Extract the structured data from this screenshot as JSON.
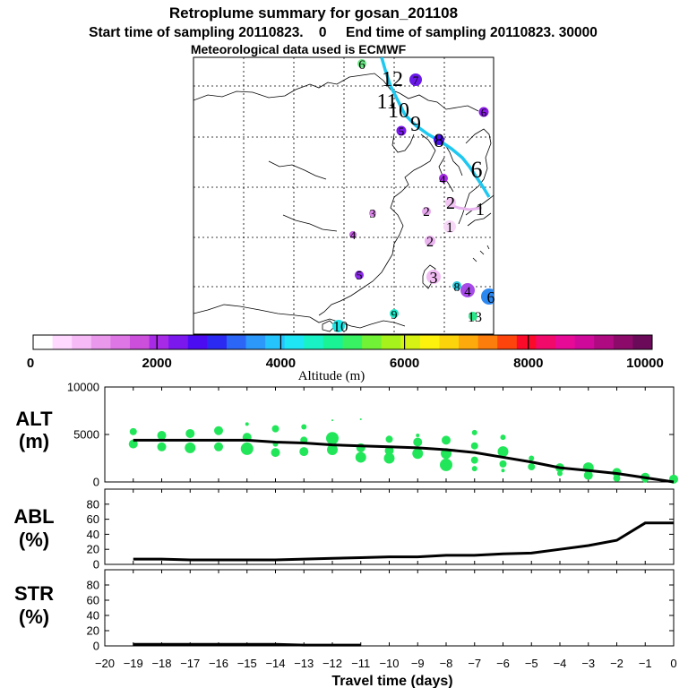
{
  "title": "Retroplume summary for gosan_201108",
  "subtitle_line1": "Start time of sampling 20110823.    0     End time of sampling 20110823. 30000",
  "subtitle_line2": "Meteorological data used is ECMWF",
  "chart_data": [
    {
      "type": "scatter",
      "name": "map",
      "description_labels": "Retroplume cluster centres labelled by travel day; colour = altitude",
      "clusters": [
        {
          "label": "6",
          "alt": 5500
        },
        {
          "label": "12",
          "alt": 200
        },
        {
          "label": "7",
          "alt": 2200
        },
        {
          "label": "11",
          "alt": 0
        },
        {
          "label": "10",
          "alt": 0
        },
        {
          "label": "9",
          "alt": 0
        },
        {
          "label": "6",
          "alt": 2000
        },
        {
          "label": "8",
          "alt": 2200
        },
        {
          "label": "5",
          "alt": 1500
        },
        {
          "label": "6",
          "alt": 0
        },
        {
          "label": "4",
          "alt": 1500
        },
        {
          "label": "2",
          "alt": 600
        },
        {
          "label": "3",
          "alt": 1500
        },
        {
          "label": "2",
          "alt": 1500
        },
        {
          "label": "1",
          "alt": 300
        },
        {
          "label": "1",
          "alt": 100
        },
        {
          "label": "4",
          "alt": 1700
        },
        {
          "label": "2",
          "alt": 1000
        },
        {
          "label": "5",
          "alt": 2000
        },
        {
          "label": "3",
          "alt": 800
        },
        {
          "label": "8",
          "alt": 4500
        },
        {
          "label": "4",
          "alt": 1700
        },
        {
          "label": "6",
          "alt": 3000
        },
        {
          "label": "9",
          "alt": 4500
        },
        {
          "label": "10",
          "alt": 3800
        },
        {
          "label": "13",
          "alt": 4700
        }
      ]
    },
    {
      "type": "colorbar",
      "name": "altitude-colorbar",
      "xlabel": "Altitude (m)",
      "range": [
        0,
        10000
      ],
      "tick_labels": [
        "0",
        "2000",
        "4000",
        "6000",
        "8000",
        "10000"
      ],
      "ticks": [
        0,
        2000,
        4000,
        6000,
        8000,
        10000
      ],
      "colors": [
        "#ffffff",
        "#ffd9ff",
        "#f6bbf6",
        "#ea98ec",
        "#df76e5",
        "#cc4fdc",
        "#a62ae6",
        "#7a18ee",
        "#4b0cf2",
        "#2a2af2",
        "#2b66f6",
        "#2b98fa",
        "#26c4fc",
        "#1ee6f5",
        "#18f2c4",
        "#1af296",
        "#39f264",
        "#72f236",
        "#a6f21d",
        "#d6f214",
        "#fcf20e",
        "#fcd40c",
        "#fcaa0c",
        "#fc7c0c",
        "#fc440c",
        "#fc0a2a",
        "#f20a6a",
        "#e60a96",
        "#cf0a9a",
        "#b00a82",
        "#8c0a6a",
        "#6a0a58"
      ]
    },
    {
      "type": "line",
      "name": "alt-panel",
      "ylabel": "ALT\n(m)",
      "ylabel_line1": "ALT",
      "ylabel_line2": "(m)",
      "ylim": [
        0,
        10000
      ],
      "ytick_labels": [
        "10000",
        "5000",
        "0"
      ],
      "yticks": [
        10000,
        5000,
        0
      ],
      "x": [
        -19,
        -18,
        -17,
        -16,
        -15,
        -14,
        -13,
        -12,
        -11,
        -10,
        -9,
        -8,
        -7,
        -6,
        -5,
        -4,
        -3,
        -2,
        -1,
        0
      ],
      "values": [
        4400,
        4400,
        4400,
        4400,
        4400,
        4200,
        4100,
        3900,
        3800,
        3700,
        3600,
        3400,
        3100,
        2600,
        2100,
        1500,
        1200,
        900,
        450,
        0
      ],
      "scatter": [
        {
          "x": -19,
          "y": 5300,
          "r": 4
        },
        {
          "x": -19,
          "y": 4000,
          "r": 5
        },
        {
          "x": -18,
          "y": 4900,
          "r": 5
        },
        {
          "x": -18,
          "y": 3700,
          "r": 5
        },
        {
          "x": -17,
          "y": 5100,
          "r": 5
        },
        {
          "x": -17,
          "y": 3600,
          "r": 6
        },
        {
          "x": -16,
          "y": 5400,
          "r": 5
        },
        {
          "x": -16,
          "y": 3700,
          "r": 5
        },
        {
          "x": -15,
          "y": 6100,
          "r": 2
        },
        {
          "x": -15,
          "y": 4700,
          "r": 5
        },
        {
          "x": -15,
          "y": 3500,
          "r": 7
        },
        {
          "x": -14,
          "y": 5600,
          "r": 4
        },
        {
          "x": -14,
          "y": 4000,
          "r": 3
        },
        {
          "x": -14,
          "y": 3100,
          "r": 5
        },
        {
          "x": -13,
          "y": 5800,
          "r": 3
        },
        {
          "x": -13,
          "y": 4400,
          "r": 4
        },
        {
          "x": -13,
          "y": 3200,
          "r": 5
        },
        {
          "x": -12,
          "y": 6500,
          "r": 1
        },
        {
          "x": -12,
          "y": 4600,
          "r": 7
        },
        {
          "x": -12,
          "y": 3400,
          "r": 6
        },
        {
          "x": -11,
          "y": 6600,
          "r": 1
        },
        {
          "x": -11,
          "y": 3600,
          "r": 5
        },
        {
          "x": -11,
          "y": 2600,
          "r": 6
        },
        {
          "x": -10,
          "y": 4500,
          "r": 4
        },
        {
          "x": -10,
          "y": 3300,
          "r": 5
        },
        {
          "x": -10,
          "y": 2500,
          "r": 6
        },
        {
          "x": -9,
          "y": 4900,
          "r": 2
        },
        {
          "x": -9,
          "y": 4200,
          "r": 5
        },
        {
          "x": -9,
          "y": 3000,
          "r": 6
        },
        {
          "x": -8,
          "y": 4400,
          "r": 5
        },
        {
          "x": -8,
          "y": 3000,
          "r": 6
        },
        {
          "x": -8,
          "y": 1800,
          "r": 7
        },
        {
          "x": -7,
          "y": 5200,
          "r": 3
        },
        {
          "x": -7,
          "y": 3800,
          "r": 4
        },
        {
          "x": -7,
          "y": 2300,
          "r": 4
        },
        {
          "x": -7,
          "y": 1400,
          "r": 3
        },
        {
          "x": -6,
          "y": 4700,
          "r": 3
        },
        {
          "x": -6,
          "y": 3200,
          "r": 6
        },
        {
          "x": -6,
          "y": 1900,
          "r": 4
        },
        {
          "x": -6,
          "y": 1200,
          "r": 2
        },
        {
          "x": -5,
          "y": 2500,
          "r": 3
        },
        {
          "x": -5,
          "y": 1600,
          "r": 4
        },
        {
          "x": -4,
          "y": 1500,
          "r": 5
        },
        {
          "x": -4,
          "y": 900,
          "r": 3
        },
        {
          "x": -3,
          "y": 1500,
          "r": 6
        },
        {
          "x": -3,
          "y": 700,
          "r": 5
        },
        {
          "x": -2,
          "y": 1000,
          "r": 5
        },
        {
          "x": -2,
          "y": 400,
          "r": 4
        },
        {
          "x": -1,
          "y": 500,
          "r": 5
        },
        {
          "x": -1,
          "y": 200,
          "r": 3
        },
        {
          "x": 0,
          "y": 300,
          "r": 5
        }
      ]
    },
    {
      "type": "line",
      "name": "abl-panel",
      "ylabel_line1": "ABL",
      "ylabel_line2": "(%)",
      "ylim": [
        0,
        100
      ],
      "ytick_labels": [
        "80",
        "60",
        "40",
        "20",
        "0"
      ],
      "yticks": [
        80,
        60,
        40,
        20,
        0
      ],
      "x": [
        -19,
        -18,
        -17,
        -16,
        -15,
        -14,
        -13,
        -12,
        -11,
        -10,
        -9,
        -8,
        -7,
        -6,
        -5,
        -4,
        -3,
        -2,
        -1,
        0
      ],
      "values": [
        7,
        7,
        6,
        6,
        6,
        6,
        7,
        8,
        9,
        10,
        10,
        12,
        12,
        14,
        15,
        20,
        25,
        32,
        55,
        55
      ]
    },
    {
      "type": "line",
      "name": "str-panel",
      "ylabel_line1": "STR",
      "ylabel_line2": "(%)",
      "ylim": [
        0,
        100
      ],
      "ytick_labels": [
        "80",
        "60",
        "40",
        "20",
        "0"
      ],
      "yticks": [
        80,
        60,
        40,
        20,
        0
      ],
      "x": [
        -19,
        -18,
        -17,
        -16,
        -15,
        -14,
        -13,
        -12,
        -11
      ],
      "values": [
        2,
        2,
        2,
        2,
        2,
        2,
        1,
        1,
        1
      ],
      "xlabel": "Travel time (days)",
      "xtick_labels": [
        "−20",
        "−19",
        "−18",
        "−17",
        "−16",
        "−15",
        "−14",
        "−13",
        "−12",
        "−11",
        "−10",
        "−9",
        "−8",
        "−7",
        "−6",
        "−5",
        "−4",
        "−3",
        "−2",
        "−1",
        "0"
      ],
      "xticks": [
        -20,
        -19,
        -18,
        -17,
        -16,
        -15,
        -14,
        -13,
        -12,
        -11,
        -10,
        -9,
        -8,
        -7,
        -6,
        -5,
        -4,
        -3,
        -2,
        -1,
        0
      ]
    }
  ]
}
